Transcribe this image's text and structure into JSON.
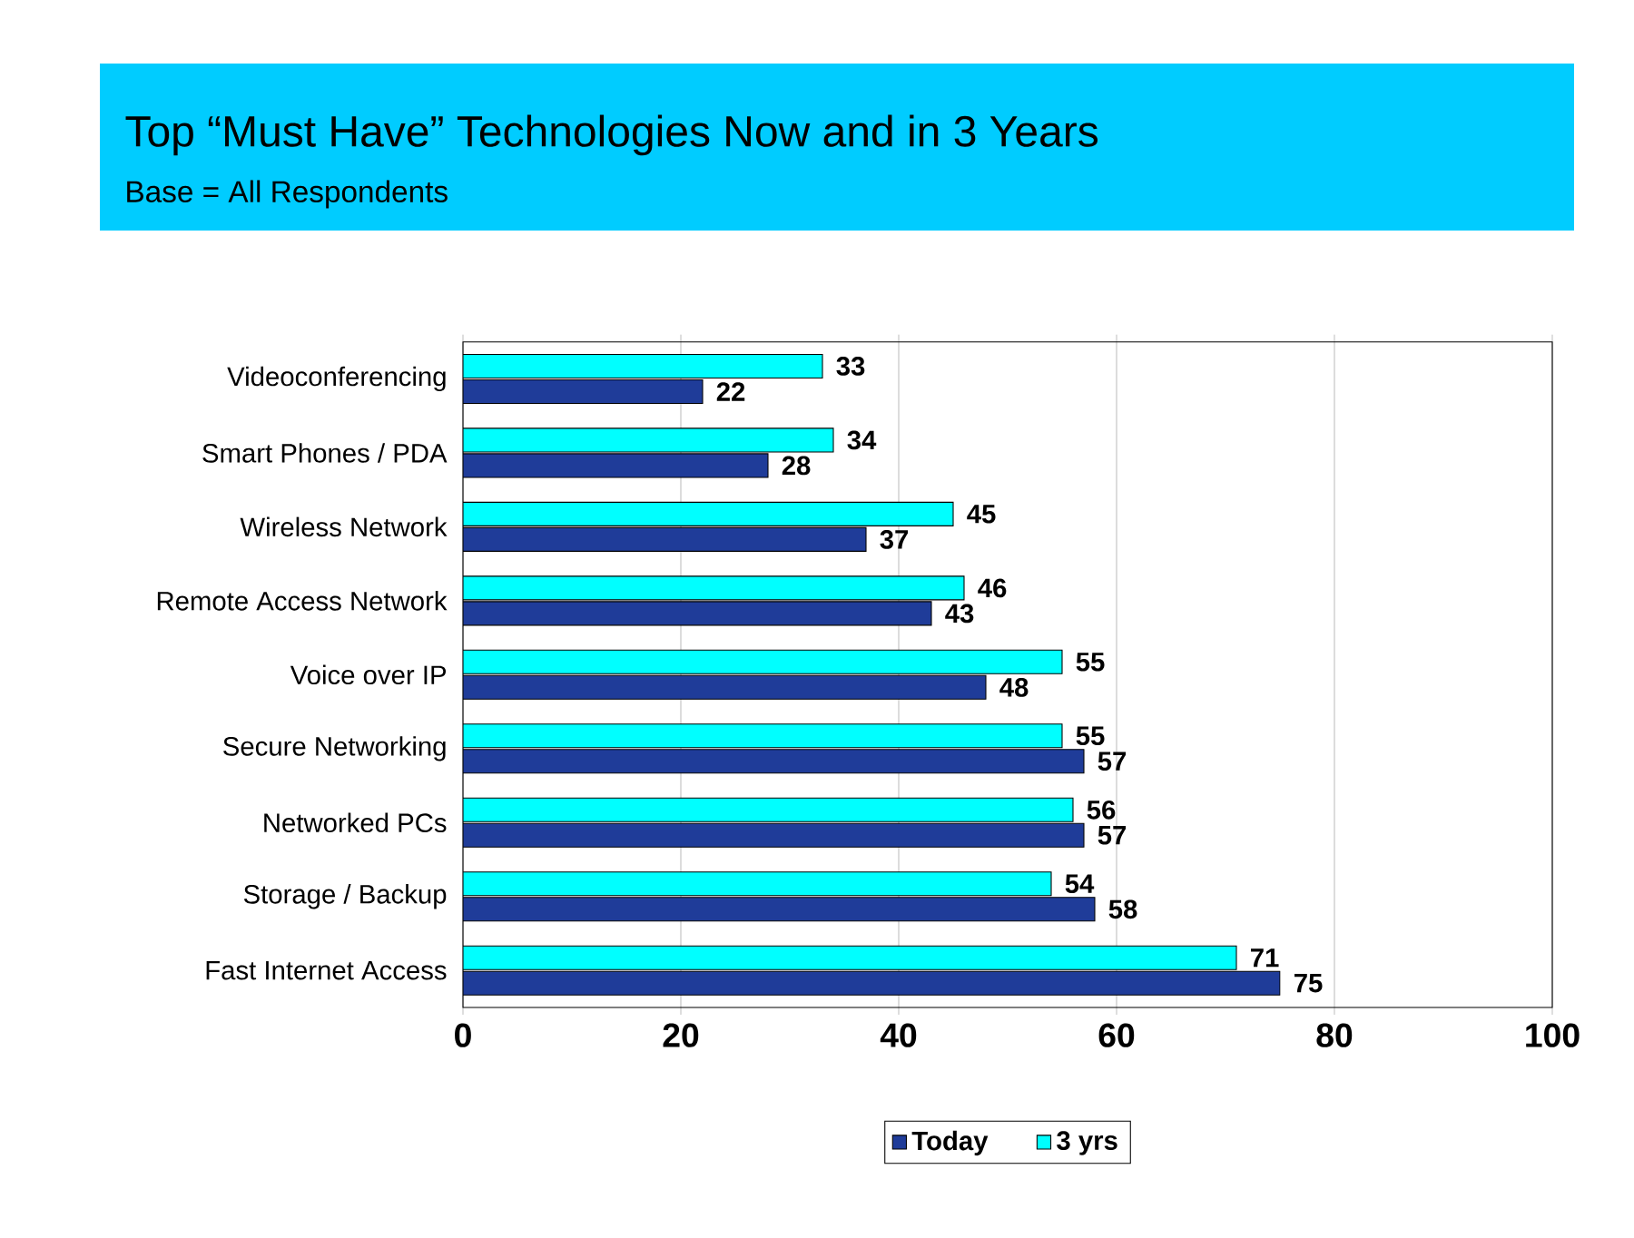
{
  "chart_data": {
    "type": "bar",
    "orientation": "horizontal",
    "title": "Top “Must Have” Technologies Now and in 3 Years",
    "subtitle": "Base = All Respondents",
    "categories": [
      "Videoconferencing",
      "Smart Phones / PDA",
      "Wireless Network",
      "Remote Access Network",
      "Voice over IP",
      "Secure Networking",
      "Networked PCs",
      "Storage / Backup",
      "Fast Internet Access"
    ],
    "series": [
      {
        "name": "Today",
        "color": "#1f3c99",
        "values": [
          22,
          28,
          37,
          43,
          48,
          57,
          57,
          58,
          75
        ]
      },
      {
        "name": "3 yrs",
        "color": "#00ffff",
        "values": [
          33,
          34,
          45,
          46,
          55,
          55,
          56,
          54,
          71
        ]
      }
    ],
    "xlim": [
      0,
      100
    ],
    "xticks": [
      0,
      20,
      40,
      60,
      80,
      100
    ],
    "grid": "x",
    "legend": "bottom",
    "data_labels": true
  }
}
